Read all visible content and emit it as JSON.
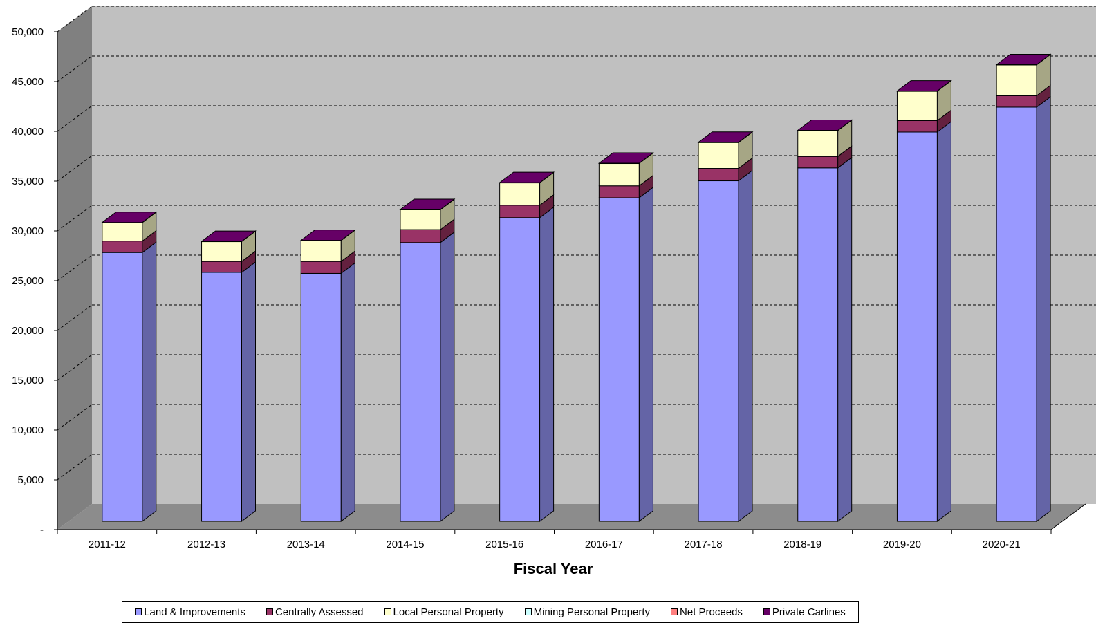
{
  "chart_data": {
    "type": "bar",
    "stacked": true,
    "three_d": true,
    "title": "",
    "xlabel": "Fiscal Year",
    "ylabel": "",
    "ylim": [
      0,
      50000
    ],
    "ytick_values": [
      0,
      5000,
      10000,
      15000,
      20000,
      25000,
      30000,
      35000,
      40000,
      45000,
      50000
    ],
    "ytick_labels": [
      "-",
      "5,000",
      "10,000",
      "15,000",
      "20,000",
      "25,000",
      "30,000",
      "35,000",
      "40,000",
      "45,000",
      "50,000"
    ],
    "grid": true,
    "legend_position": "bottom",
    "categories": [
      "2011-12",
      "2012-13",
      "2013-14",
      "2014-15",
      "2015-16",
      "2016-17",
      "2017-18",
      "2018-19",
      "2019-20",
      "2020-21"
    ],
    "series": [
      {
        "name": "Land & Improvements",
        "color": "#9999ff",
        "side_color": "#6464a6",
        "top_color": "#8080d6",
        "values": [
          27000,
          25000,
          24900,
          28000,
          30500,
          32500,
          34200,
          35500,
          39100,
          41600
        ]
      },
      {
        "name": "Centrally Assessed",
        "color": "#993366",
        "side_color": "#64213f",
        "top_color": "#7f2a55",
        "values": [
          1150,
          1100,
          1200,
          1300,
          1250,
          1200,
          1250,
          1150,
          1150,
          1150
        ]
      },
      {
        "name": "Local Personal Property",
        "color": "#ffffcc",
        "side_color": "#a6a685",
        "top_color": "#d6d6ab",
        "values": [
          1850,
          2000,
          2100,
          2000,
          2250,
          2250,
          2600,
          2600,
          2950,
          3100
        ]
      },
      {
        "name": "Mining Personal Property",
        "color": "#ccffff",
        "side_color": "#85a6a6",
        "top_color": "#abd6d6",
        "values": [
          0,
          0,
          0,
          0,
          0,
          0,
          0,
          0,
          0,
          0
        ]
      },
      {
        "name": "Net Proceeds",
        "color": "#ff8080",
        "side_color": "#a65353",
        "top_color": "#d66b6b",
        "values": [
          0,
          0,
          0,
          0,
          0,
          0,
          0,
          0,
          0,
          0
        ]
      },
      {
        "name": "Private Carlines",
        "color": "#660066",
        "side_color": "#420042",
        "top_color": "#550055",
        "values": [
          20,
          20,
          20,
          20,
          20,
          20,
          20,
          20,
          20,
          20
        ]
      }
    ]
  }
}
